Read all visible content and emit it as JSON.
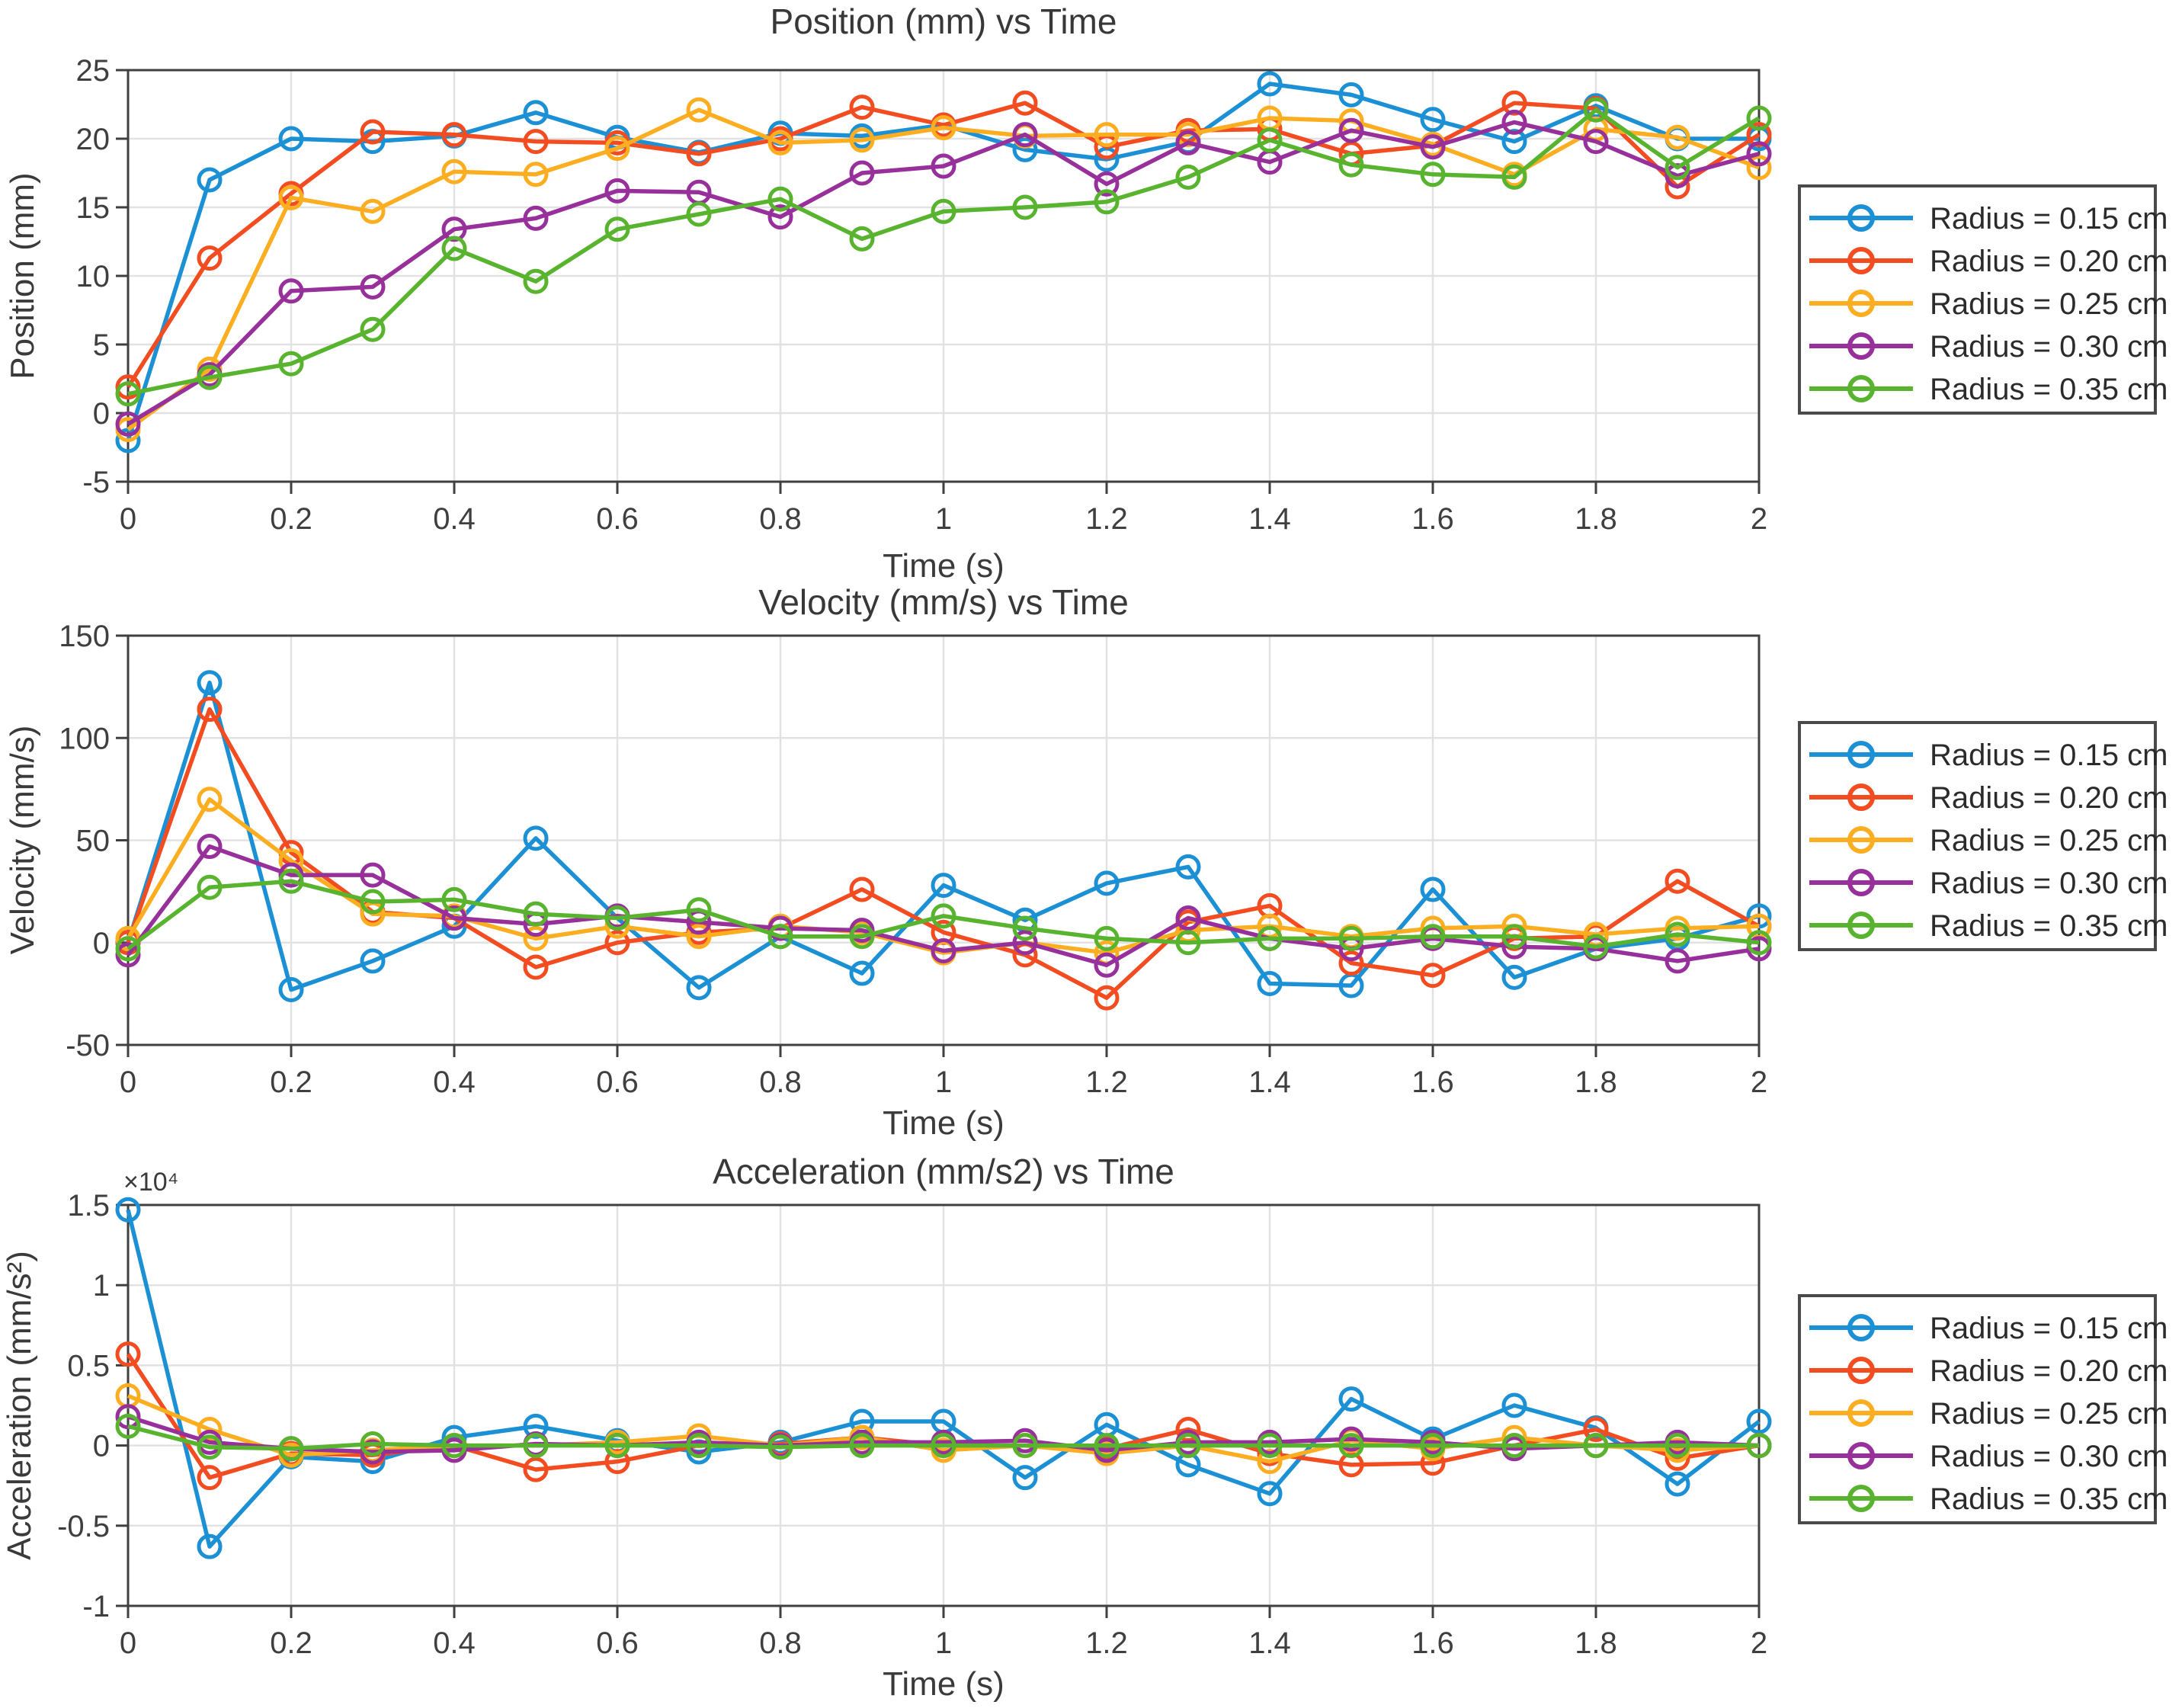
{
  "figure": {
    "background": "#ffffff",
    "axis_color": "#404040",
    "grid_color": "#e2e2e2",
    "legend_border_color": "#4a4a4a"
  },
  "chart_data": [
    {
      "type": "line",
      "title": "Position (mm) vs Time",
      "xlabel": "Time (s)",
      "ylabel": "Position (mm)",
      "xlim": [
        0,
        2
      ],
      "ylim": [
        -5,
        25
      ],
      "grid": true,
      "legend_position": "right-outside",
      "xticks": {
        "values": [
          0,
          0.2,
          0.4,
          0.6,
          0.8,
          1,
          1.2,
          1.4,
          1.6,
          1.8,
          2
        ],
        "labels": [
          "0",
          "0.2",
          "0.4",
          "0.6",
          "0.8",
          "1",
          "1.2",
          "1.4",
          "1.6",
          "1.8",
          "2"
        ]
      },
      "yticks": {
        "values": [
          25,
          20,
          15,
          10,
          5,
          0,
          -5
        ],
        "labels": [
          "25",
          "20",
          "15",
          "10",
          "5",
          "0",
          "-5"
        ]
      },
      "x": [
        0,
        0.1,
        0.2,
        0.3,
        0.4,
        0.5,
        0.6,
        0.7,
        0.8,
        0.9,
        1,
        1.1,
        1.2,
        1.3,
        1.4,
        1.5,
        1.6,
        1.7,
        1.8,
        1.9,
        2
      ],
      "series": [
        {
          "name": "Radius = 0.15 cm",
          "color": "#1b90d5",
          "values": [
            -2.0,
            17.0,
            20.0,
            19.8,
            20.2,
            21.9,
            20.1,
            19.0,
            20.4,
            20.2,
            21.0,
            19.2,
            18.5,
            19.8,
            24.0,
            23.2,
            21.4,
            19.8,
            22.4,
            20.0,
            20.0
          ]
        },
        {
          "name": "Radius = 0.20 cm",
          "color": "#f24c20",
          "values": [
            1.9,
            11.3,
            16.0,
            20.5,
            20.3,
            19.8,
            19.7,
            18.9,
            20.0,
            22.3,
            21.0,
            22.6,
            19.4,
            20.6,
            20.7,
            18.9,
            19.5,
            22.6,
            22.2,
            16.5,
            20.3
          ]
        },
        {
          "name": "Radius = 0.25 cm",
          "color": "#fcae20",
          "values": [
            -1.2,
            3.2,
            15.7,
            14.7,
            17.6,
            17.4,
            19.3,
            22.1,
            19.7,
            19.9,
            20.8,
            20.2,
            20.3,
            20.3,
            21.5,
            21.3,
            19.6,
            17.4,
            20.7,
            20.1,
            17.9
          ]
        },
        {
          "name": "Radius = 0.30 cm",
          "color": "#97309b",
          "values": [
            -0.8,
            2.8,
            8.9,
            9.2,
            13.4,
            14.2,
            16.2,
            16.1,
            14.3,
            17.5,
            18.0,
            20.3,
            16.7,
            19.7,
            18.3,
            20.6,
            19.4,
            21.2,
            19.8,
            17.3,
            18.9
          ]
        },
        {
          "name": "Radius = 0.35 cm",
          "color": "#58b32e",
          "values": [
            1.4,
            2.6,
            3.6,
            6.1,
            12.0,
            9.6,
            13.4,
            14.5,
            15.6,
            12.7,
            14.7,
            15.0,
            15.4,
            17.2,
            19.9,
            18.1,
            17.4,
            17.2,
            22.1,
            17.9,
            21.5
          ]
        }
      ]
    },
    {
      "type": "line",
      "title": "Velocity (mm/s) vs Time",
      "xlabel": "Time (s)",
      "ylabel": "Velocity (mm/s)",
      "xlim": [
        0,
        2
      ],
      "ylim": [
        -50,
        150
      ],
      "grid": true,
      "legend_position": "right-outside",
      "xticks": {
        "values": [
          0,
          0.2,
          0.4,
          0.6,
          0.8,
          1,
          1.2,
          1.4,
          1.6,
          1.8,
          2
        ],
        "labels": [
          "0",
          "0.2",
          "0.4",
          "0.6",
          "0.8",
          "1",
          "1.2",
          "1.4",
          "1.6",
          "1.8",
          "2"
        ]
      },
      "yticks": {
        "values": [
          150,
          100,
          50,
          0,
          -50
        ],
        "labels": [
          "150",
          "100",
          "50",
          "0",
          "-50"
        ]
      },
      "x": [
        0,
        0.1,
        0.2,
        0.3,
        0.4,
        0.5,
        0.6,
        0.7,
        0.8,
        0.9,
        1,
        1.1,
        1.2,
        1.3,
        1.4,
        1.5,
        1.6,
        1.7,
        1.8,
        1.9,
        2
      ],
      "series": [
        {
          "name": "Radius = 0.15 cm",
          "color": "#1b90d5",
          "values": [
            0,
            127,
            -23,
            -9,
            8,
            51,
            12,
            -22,
            3,
            -15,
            28,
            11,
            29,
            37,
            -20,
            -21,
            26,
            -17,
            -3,
            2,
            13
          ]
        },
        {
          "name": "Radius = 0.20 cm",
          "color": "#f24c20",
          "values": [
            0,
            114,
            44,
            15,
            12,
            -12,
            0,
            5,
            7,
            26,
            5,
            -6,
            -27,
            10,
            18,
            -10,
            -16,
            2,
            3,
            30,
            8
          ]
        },
        {
          "name": "Radius = 0.25 cm",
          "color": "#fcae20",
          "values": [
            2,
            70,
            40,
            14,
            13,
            2,
            8,
            3,
            8,
            5,
            -5,
            0,
            -5,
            6,
            8,
            3,
            7,
            8,
            4,
            7,
            8
          ]
        },
        {
          "name": "Radius = 0.30 cm",
          "color": "#97309b",
          "values": [
            -6,
            47,
            33,
            33,
            12,
            9,
            13,
            10,
            7,
            6,
            -4,
            0,
            -11,
            12,
            2,
            -3,
            2,
            -2,
            -3,
            -9,
            -3
          ]
        },
        {
          "name": "Radius = 0.35 cm",
          "color": "#58b32e",
          "values": [
            -3,
            27,
            30,
            20,
            21,
            14,
            12,
            16,
            3,
            3,
            13,
            7,
            2,
            0,
            2,
            2,
            3,
            3,
            -2,
            4,
            0
          ]
        }
      ]
    },
    {
      "type": "line",
      "title": "Acceleration (mm/s2) vs Time",
      "xlabel": "Time (s)",
      "ylabel": "Acceleration (mm/s²)",
      "y_multiplier": "×10⁴",
      "xlim": [
        0,
        2
      ],
      "ylim": [
        -1,
        1.5
      ],
      "grid": true,
      "legend_position": "right-outside",
      "xticks": {
        "values": [
          0,
          0.2,
          0.4,
          0.6,
          0.8,
          1,
          1.2,
          1.4,
          1.6,
          1.8,
          2
        ],
        "labels": [
          "0",
          "0.2",
          "0.4",
          "0.6",
          "0.8",
          "1",
          "1.2",
          "1.4",
          "1.6",
          "1.8",
          "2"
        ]
      },
      "yticks": {
        "values": [
          1.5,
          1,
          0.5,
          0,
          -0.5,
          -1
        ],
        "labels": [
          "1.5",
          "1",
          "0.5",
          "0",
          "-0.5",
          "-1"
        ]
      },
      "x": [
        0,
        0.1,
        0.2,
        0.3,
        0.4,
        0.5,
        0.6,
        0.7,
        0.8,
        0.9,
        1,
        1.1,
        1.2,
        1.3,
        1.4,
        1.5,
        1.6,
        1.7,
        1.8,
        1.9,
        2
      ],
      "series": [
        {
          "name": "Radius = 0.15 cm",
          "color": "#1b90d5",
          "values": [
            1.47,
            -0.63,
            -0.07,
            -0.1,
            0.05,
            0.12,
            0.03,
            -0.04,
            0.02,
            0.15,
            0.15,
            -0.2,
            0.13,
            -0.12,
            -0.3,
            0.29,
            0.04,
            0.25,
            0.11,
            -0.24,
            0.15
          ]
        },
        {
          "name": "Radius = 0.20 cm",
          "color": "#f24c20",
          "values": [
            0.57,
            -0.2,
            -0.05,
            -0.06,
            0.0,
            -0.15,
            -0.1,
            0.0,
            0.01,
            0.05,
            0.0,
            0.0,
            -0.02,
            0.1,
            -0.05,
            -0.12,
            -0.11,
            0.0,
            0.1,
            -0.08,
            0.0
          ]
        },
        {
          "name": "Radius = 0.25 cm",
          "color": "#fcae20",
          "values": [
            0.31,
            0.1,
            -0.06,
            -0.03,
            0.0,
            0.0,
            0.02,
            0.06,
            0.0,
            0.05,
            -0.03,
            0.0,
            -0.05,
            0.0,
            -0.1,
            0.03,
            -0.02,
            0.05,
            0.0,
            -0.03,
            0.0
          ]
        },
        {
          "name": "Radius = 0.30 cm",
          "color": "#97309b",
          "values": [
            0.18,
            0.02,
            -0.02,
            -0.04,
            -0.03,
            0.01,
            0.0,
            0.02,
            0.0,
            0.02,
            0.02,
            0.03,
            -0.03,
            0.02,
            0.02,
            0.04,
            0.02,
            -0.02,
            0.0,
            0.02,
            0.0
          ]
        },
        {
          "name": "Radius = 0.35 cm",
          "color": "#58b32e",
          "values": [
            0.12,
            -0.01,
            -0.02,
            0.01,
            0.0,
            0.0,
            0.0,
            0.0,
            -0.01,
            0.0,
            0.0,
            0.0,
            0.0,
            0.0,
            0.0,
            0.0,
            0.0,
            0.0,
            0.0,
            0.0,
            0.0
          ]
        }
      ]
    }
  ]
}
